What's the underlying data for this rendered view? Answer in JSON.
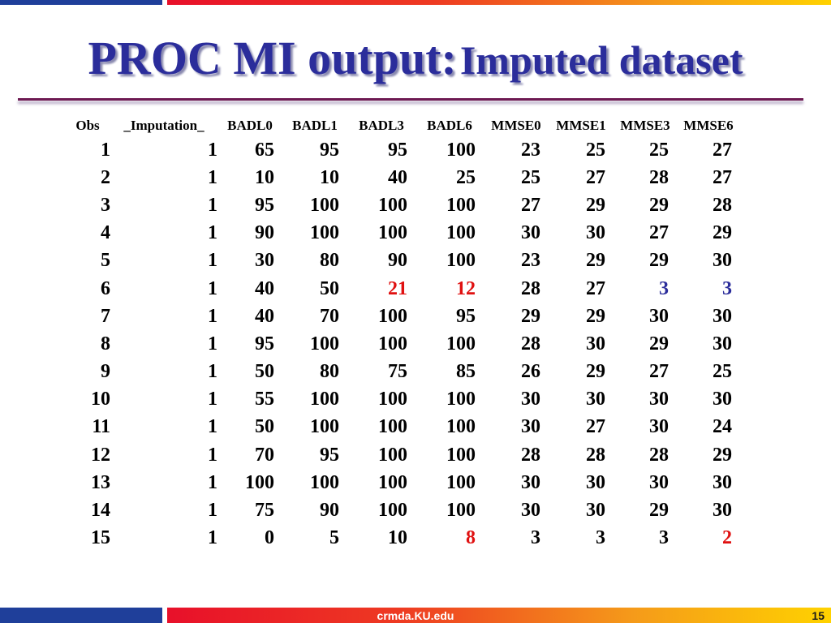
{
  "slide": {
    "title_part1": "PROC MI output:",
    "title_part2": "Imputed dataset",
    "footer": "crmda.KU.edu",
    "page_number": "15"
  },
  "colors": {
    "title": "#2b2d9b",
    "imputed_red": "#e01010",
    "imputed_blue": "#2b2d9b",
    "rule": "#6d1a52"
  },
  "table": {
    "columns": [
      "Obs",
      "_Imputation_",
      "BADL0",
      "BADL1",
      "BADL3",
      "BADL6",
      "MMSE0",
      "MMSE1",
      "MMSE3",
      "MMSE6"
    ],
    "rows": [
      [
        "1",
        "1",
        "65",
        "95",
        "95",
        "100",
        "23",
        "25",
        "25",
        "27"
      ],
      [
        "2",
        "1",
        "10",
        "10",
        "40",
        "25",
        "25",
        "27",
        "28",
        "27"
      ],
      [
        "3",
        "1",
        "95",
        "100",
        "100",
        "100",
        "27",
        "29",
        "29",
        "28"
      ],
      [
        "4",
        "1",
        "90",
        "100",
        "100",
        "100",
        "30",
        "30",
        "27",
        "29"
      ],
      [
        "5",
        "1",
        "30",
        "80",
        "90",
        "100",
        "23",
        "29",
        "29",
        "30"
      ],
      [
        "6",
        "1",
        "40",
        "50",
        "21",
        "12",
        "28",
        "27",
        "3",
        "3"
      ],
      [
        "7",
        "1",
        "40",
        "70",
        "100",
        "95",
        "29",
        "29",
        "30",
        "30"
      ],
      [
        "8",
        "1",
        "95",
        "100",
        "100",
        "100",
        "28",
        "30",
        "29",
        "30"
      ],
      [
        "9",
        "1",
        "50",
        "80",
        "75",
        "85",
        "26",
        "29",
        "27",
        "25"
      ],
      [
        "10",
        "1",
        "55",
        "100",
        "100",
        "100",
        "30",
        "30",
        "30",
        "30"
      ],
      [
        "11",
        "1",
        "50",
        "100",
        "100",
        "100",
        "30",
        "27",
        "30",
        "24"
      ],
      [
        "12",
        "1",
        "70",
        "95",
        "100",
        "100",
        "28",
        "28",
        "28",
        "29"
      ],
      [
        "13",
        "1",
        "100",
        "100",
        "100",
        "100",
        "30",
        "30",
        "30",
        "30"
      ],
      [
        "14",
        "1",
        "75",
        "90",
        "100",
        "100",
        "30",
        "30",
        "29",
        "30"
      ],
      [
        "15",
        "1",
        "0",
        "5",
        "10",
        "8",
        "3",
        "3",
        "3",
        "2"
      ]
    ],
    "highlights": [
      {
        "row": 5,
        "col": 4,
        "color": "red"
      },
      {
        "row": 5,
        "col": 5,
        "color": "red"
      },
      {
        "row": 5,
        "col": 8,
        "color": "blue"
      },
      {
        "row": 5,
        "col": 9,
        "color": "blue"
      },
      {
        "row": 14,
        "col": 5,
        "color": "red"
      },
      {
        "row": 14,
        "col": 9,
        "color": "red"
      }
    ]
  }
}
